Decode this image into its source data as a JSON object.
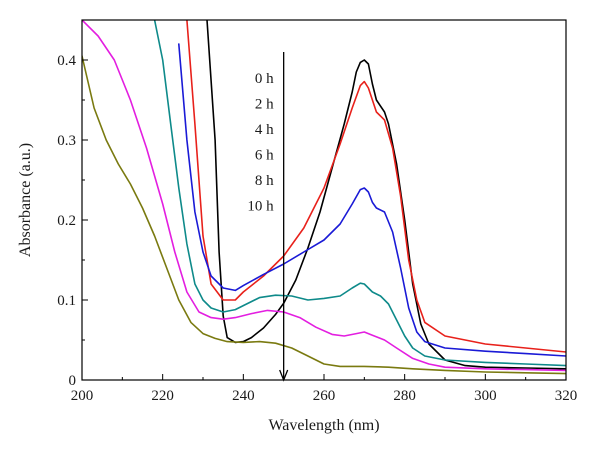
{
  "chart_data": {
    "type": "line",
    "xlabel": "Wavelength (nm)",
    "ylabel": "Absorbance (a.u.)",
    "xlim": [
      200,
      320
    ],
    "ylim": [
      0,
      0.45
    ],
    "x_ticks": [
      200,
      220,
      240,
      260,
      280,
      300,
      320
    ],
    "y_ticks": [
      0,
      0.1,
      0.2,
      0.3,
      0.4
    ],
    "y_tick_labels": [
      "0",
      "0.1",
      "0.2",
      "0.3",
      "0.4"
    ],
    "grid": false,
    "legend_labels": [
      "0 h",
      "2 h",
      "4 h",
      "6 h",
      "8 h",
      "10 h"
    ],
    "arrow": {
      "x": 250,
      "y_from": 0.41,
      "y_to": 0.0,
      "direction": "down"
    },
    "series": [
      {
        "name": "0 h",
        "color": "#000000",
        "points": [
          [
            231,
            0.45
          ],
          [
            233,
            0.3
          ],
          [
            234,
            0.16
          ],
          [
            235,
            0.08
          ],
          [
            236,
            0.053
          ],
          [
            238,
            0.047
          ],
          [
            240,
            0.048
          ],
          [
            242,
            0.053
          ],
          [
            245,
            0.065
          ],
          [
            248,
            0.082
          ],
          [
            250,
            0.096
          ],
          [
            253,
            0.125
          ],
          [
            256,
            0.165
          ],
          [
            259,
            0.21
          ],
          [
            262,
            0.265
          ],
          [
            265,
            0.32
          ],
          [
            267,
            0.36
          ],
          [
            268,
            0.385
          ],
          [
            269,
            0.397
          ],
          [
            270,
            0.4
          ],
          [
            271,
            0.395
          ],
          [
            272,
            0.37
          ],
          [
            273,
            0.35
          ],
          [
            275,
            0.335
          ],
          [
            276,
            0.32
          ],
          [
            278,
            0.27
          ],
          [
            280,
            0.2
          ],
          [
            282,
            0.12
          ],
          [
            284,
            0.07
          ],
          [
            286,
            0.045
          ],
          [
            290,
            0.025
          ],
          [
            295,
            0.018
          ],
          [
            300,
            0.016
          ],
          [
            310,
            0.015
          ],
          [
            320,
            0.014
          ]
        ]
      },
      {
        "name": "2 h",
        "color": "#e8211b",
        "points": [
          [
            226,
            0.45
          ],
          [
            228,
            0.32
          ],
          [
            230,
            0.18
          ],
          [
            232,
            0.12
          ],
          [
            235,
            0.1
          ],
          [
            238,
            0.1
          ],
          [
            240,
            0.11
          ],
          [
            245,
            0.13
          ],
          [
            250,
            0.155
          ],
          [
            255,
            0.19
          ],
          [
            260,
            0.24
          ],
          [
            264,
            0.295
          ],
          [
            267,
            0.34
          ],
          [
            269,
            0.368
          ],
          [
            270,
            0.373
          ],
          [
            271,
            0.365
          ],
          [
            272,
            0.35
          ],
          [
            273,
            0.335
          ],
          [
            275,
            0.325
          ],
          [
            277,
            0.29
          ],
          [
            279,
            0.23
          ],
          [
            281,
            0.15
          ],
          [
            283,
            0.1
          ],
          [
            285,
            0.072
          ],
          [
            290,
            0.055
          ],
          [
            300,
            0.045
          ],
          [
            310,
            0.04
          ],
          [
            320,
            0.035
          ]
        ]
      },
      {
        "name": "4 h",
        "color": "#1a1ad6",
        "points": [
          [
            224,
            0.42
          ],
          [
            226,
            0.3
          ],
          [
            228,
            0.21
          ],
          [
            230,
            0.16
          ],
          [
            232,
            0.13
          ],
          [
            235,
            0.115
          ],
          [
            238,
            0.112
          ],
          [
            240,
            0.118
          ],
          [
            245,
            0.132
          ],
          [
            250,
            0.145
          ],
          [
            255,
            0.16
          ],
          [
            260,
            0.175
          ],
          [
            264,
            0.195
          ],
          [
            267,
            0.22
          ],
          [
            269,
            0.238
          ],
          [
            270,
            0.24
          ],
          [
            271,
            0.235
          ],
          [
            272,
            0.222
          ],
          [
            273,
            0.215
          ],
          [
            275,
            0.21
          ],
          [
            277,
            0.185
          ],
          [
            279,
            0.14
          ],
          [
            281,
            0.09
          ],
          [
            283,
            0.06
          ],
          [
            285,
            0.048
          ],
          [
            290,
            0.04
          ],
          [
            300,
            0.036
          ],
          [
            310,
            0.033
          ],
          [
            320,
            0.03
          ]
        ]
      },
      {
        "name": "6 h",
        "color": "#0e8a8a",
        "points": [
          [
            218,
            0.45
          ],
          [
            220,
            0.4
          ],
          [
            222,
            0.32
          ],
          [
            224,
            0.24
          ],
          [
            226,
            0.17
          ],
          [
            228,
            0.12
          ],
          [
            230,
            0.1
          ],
          [
            232,
            0.09
          ],
          [
            235,
            0.085
          ],
          [
            238,
            0.088
          ],
          [
            240,
            0.093
          ],
          [
            244,
            0.103
          ],
          [
            248,
            0.106
          ],
          [
            252,
            0.105
          ],
          [
            256,
            0.1
          ],
          [
            260,
            0.102
          ],
          [
            264,
            0.105
          ],
          [
            267,
            0.115
          ],
          [
            269,
            0.121
          ],
          [
            270,
            0.12
          ],
          [
            272,
            0.11
          ],
          [
            274,
            0.105
          ],
          [
            276,
            0.095
          ],
          [
            278,
            0.075
          ],
          [
            280,
            0.055
          ],
          [
            282,
            0.04
          ],
          [
            285,
            0.03
          ],
          [
            290,
            0.025
          ],
          [
            300,
            0.022
          ],
          [
            310,
            0.02
          ],
          [
            320,
            0.018
          ]
        ]
      },
      {
        "name": "8 h",
        "color": "#e31ee0",
        "points": [
          [
            200,
            0.45
          ],
          [
            204,
            0.43
          ],
          [
            208,
            0.4
          ],
          [
            212,
            0.35
          ],
          [
            216,
            0.29
          ],
          [
            220,
            0.22
          ],
          [
            223,
            0.16
          ],
          [
            226,
            0.11
          ],
          [
            229,
            0.085
          ],
          [
            232,
            0.078
          ],
          [
            235,
            0.076
          ],
          [
            238,
            0.078
          ],
          [
            242,
            0.083
          ],
          [
            246,
            0.087
          ],
          [
            250,
            0.085
          ],
          [
            254,
            0.078
          ],
          [
            258,
            0.066
          ],
          [
            262,
            0.057
          ],
          [
            265,
            0.055
          ],
          [
            268,
            0.058
          ],
          [
            270,
            0.06
          ],
          [
            272,
            0.056
          ],
          [
            275,
            0.05
          ],
          [
            278,
            0.04
          ],
          [
            282,
            0.027
          ],
          [
            286,
            0.02
          ],
          [
            290,
            0.016
          ],
          [
            300,
            0.014
          ],
          [
            310,
            0.013
          ],
          [
            320,
            0.012
          ]
        ]
      },
      {
        "name": "10 h",
        "color": "#7a7a10",
        "points": [
          [
            200,
            0.405
          ],
          [
            203,
            0.34
          ],
          [
            206,
            0.3
          ],
          [
            209,
            0.27
          ],
          [
            212,
            0.245
          ],
          [
            215,
            0.215
          ],
          [
            218,
            0.18
          ],
          [
            221,
            0.14
          ],
          [
            224,
            0.1
          ],
          [
            227,
            0.072
          ],
          [
            230,
            0.058
          ],
          [
            233,
            0.052
          ],
          [
            236,
            0.048
          ],
          [
            240,
            0.047
          ],
          [
            244,
            0.048
          ],
          [
            248,
            0.046
          ],
          [
            252,
            0.04
          ],
          [
            256,
            0.03
          ],
          [
            260,
            0.02
          ],
          [
            264,
            0.017
          ],
          [
            270,
            0.017
          ],
          [
            276,
            0.016
          ],
          [
            282,
            0.014
          ],
          [
            290,
            0.012
          ],
          [
            300,
            0.01
          ],
          [
            310,
            0.009
          ],
          [
            320,
            0.008
          ]
        ]
      }
    ]
  }
}
